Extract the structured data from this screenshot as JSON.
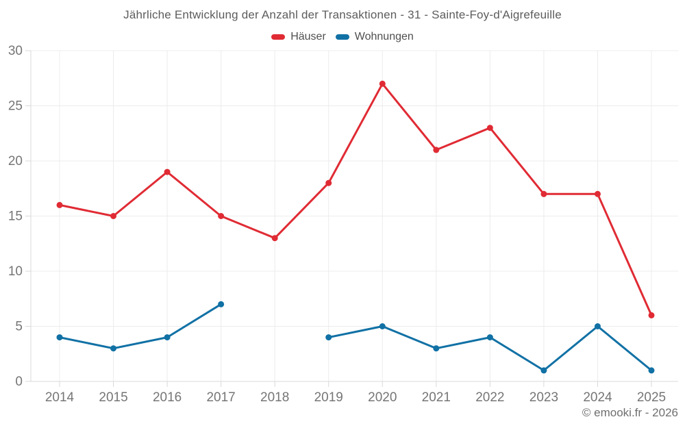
{
  "chart_data": {
    "type": "line",
    "title": "Jährliche Entwicklung der Anzahl der Transaktionen - 31 - Sainte-Foy-d'Aigrefeuille",
    "categories": [
      "2014",
      "2015",
      "2016",
      "2017",
      "2018",
      "2019",
      "2020",
      "2021",
      "2022",
      "2023",
      "2024",
      "2025"
    ],
    "series": [
      {
        "name": "Häuser",
        "color": "#e02b34",
        "values": [
          16,
          15,
          19,
          15,
          13,
          18,
          27,
          21,
          23,
          17,
          17,
          6
        ]
      },
      {
        "name": "Wohnungen",
        "color": "#1171a5",
        "values": [
          4,
          3,
          4,
          7,
          null,
          4,
          5,
          3,
          4,
          1,
          5,
          1
        ]
      }
    ],
    "xlabel": "",
    "ylabel": "",
    "ylim": [
      0,
      30
    ],
    "yticks": [
      0,
      5,
      10,
      15,
      20,
      25,
      30
    ],
    "grid": true,
    "legend_position": "top"
  },
  "footer": {
    "copyright": "© emooki.fr - 2026"
  },
  "theme": {
    "grid_color": "#ececec",
    "axis_color": "#d9d9d9",
    "axis_label_color": "#757575"
  }
}
